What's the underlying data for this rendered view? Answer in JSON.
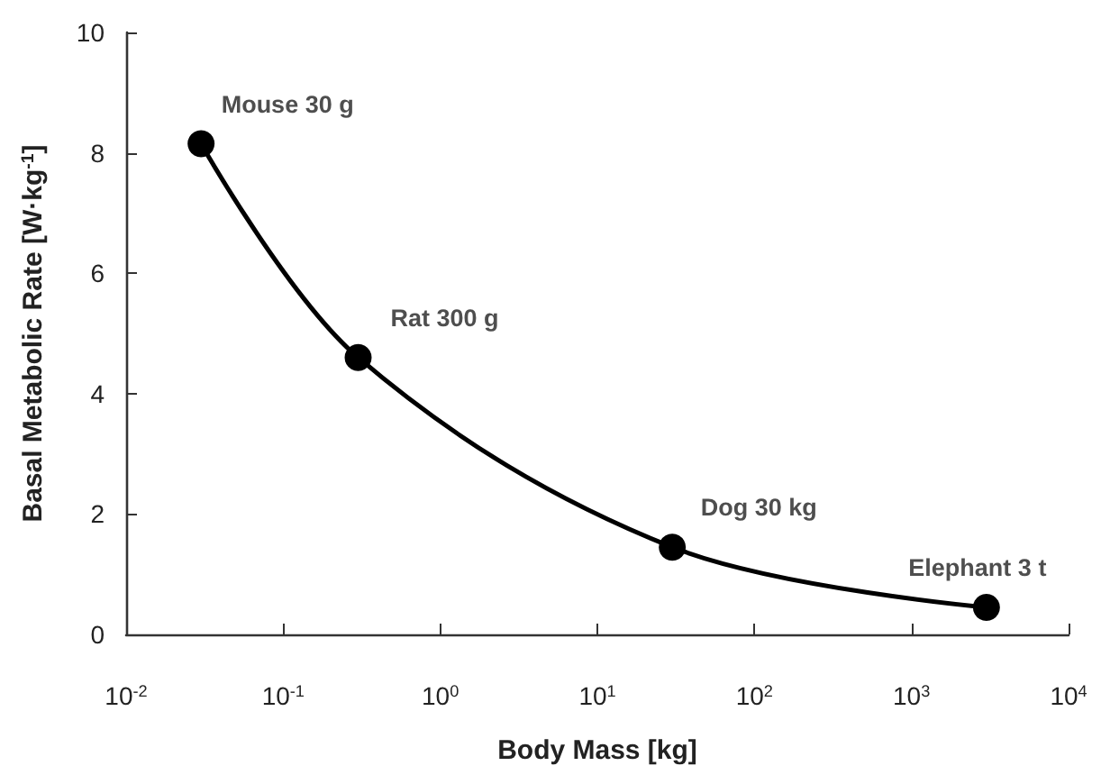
{
  "chart_data": {
    "type": "line",
    "xlabel": "Body Mass [kg]",
    "ylabel": "Basal Metabolic Rate [W·kg$^{-1}$]",
    "x": [
      0.03,
      0.3,
      30,
      3000
    ],
    "series": [
      {
        "color": "#000000",
        "values": [
          8.15,
          4.6,
          1.45,
          0.45
        ]
      }
    ],
    "log": "x",
    "xlim": [
      0.01,
      10000
    ],
    "xticks": [
      {
        "value": 0.01,
        "label": "10$^{-2}$"
      },
      {
        "value": 0.1,
        "label": "10$^{-1}$"
      },
      {
        "value": 1,
        "label": "10$^{0}$"
      },
      {
        "value": 10,
        "label": "10$^{1}$"
      },
      {
        "value": 100,
        "label": "10$^{2}$"
      },
      {
        "value": 1000,
        "label": "10$^{3}$"
      },
      {
        "value": 10000,
        "label": "10$^{4}$"
      }
    ],
    "ylim": [
      0,
      10
    ],
    "yticks": [
      0,
      2,
      4,
      6,
      8,
      10
    ],
    "annotations": [
      {
        "text": "Mouse 30 g",
        "x": 0.03,
        "y": 8.15
      },
      {
        "text": "Rat 300 g",
        "x": 0.3,
        "y": 4.6
      },
      {
        "text": "Dog 30 kg",
        "x": 30,
        "y": 1.45
      },
      {
        "text": "Elephant 3 t",
        "x": 3000,
        "y": 0.45
      }
    ],
    "grid": false,
    "marker": "circle",
    "line_style": "solid"
  }
}
